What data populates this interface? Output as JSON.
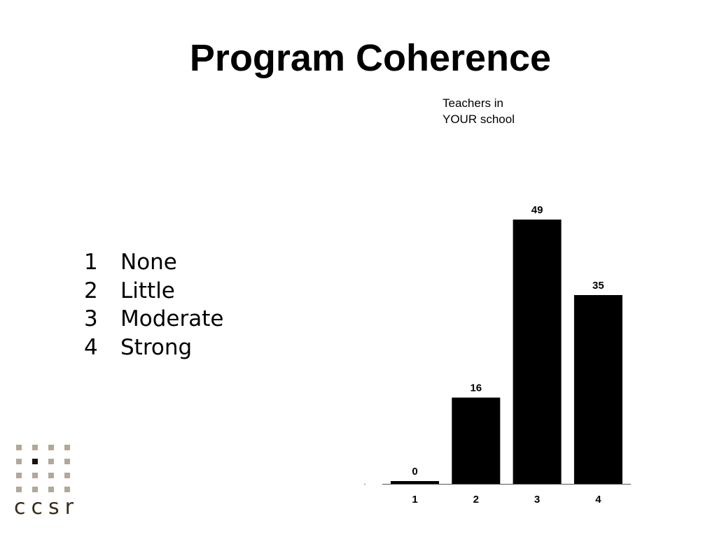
{
  "slide": {
    "title": "Program Coherence"
  },
  "legend": {
    "items": [
      {
        "num": "1",
        "label": "None"
      },
      {
        "num": "2",
        "label": "Little"
      },
      {
        "num": "3",
        "label": "Moderate"
      },
      {
        "num": "4",
        "label": "Strong"
      }
    ]
  },
  "chart_data": {
    "type": "bar",
    "title": "Teachers in\nYOUR school",
    "categories": [
      "1",
      "2",
      "3",
      "4"
    ],
    "values": [
      0,
      16,
      49,
      35
    ],
    "data_labels": [
      "0",
      "16",
      "49",
      "35"
    ],
    "xlabel": "",
    "ylabel": "",
    "ylim": [
      0,
      49
    ],
    "grid": false,
    "bar_color": "#000000"
  },
  "logo": {
    "text": "ccsr",
    "accent_color": "#b3a898",
    "dark_color": "#1a1208"
  }
}
